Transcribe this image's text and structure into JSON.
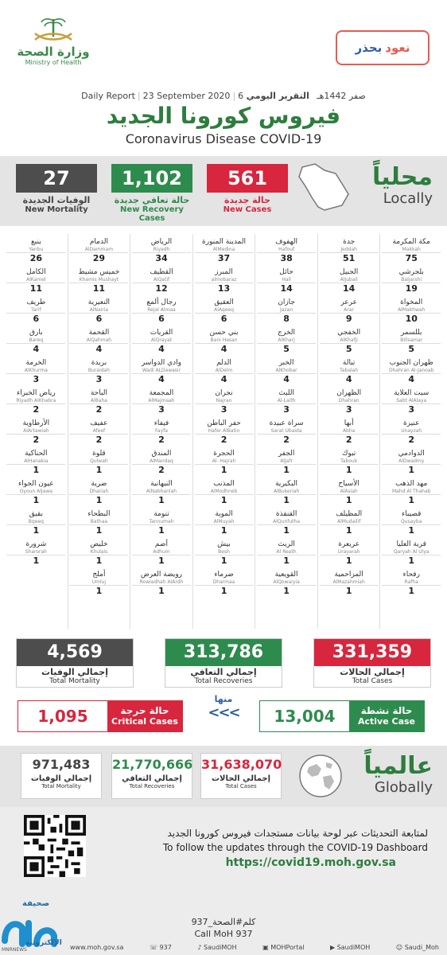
{
  "header": {
    "moh_ar": "وزارة الصحة",
    "moh_en": "Ministry of Health",
    "campaign_a": "نعود",
    "campaign_b": "بحذر",
    "report_ar": "التقرير اليومي",
    "report_hijri": "6 صفر 1442هـ",
    "report_date": "23 September 2020",
    "report_en": "Daily Report",
    "title_ar": "فيروس كورونا الجديد",
    "title_en": "Coronavirus Disease COVID-19"
  },
  "locally": {
    "label_ar": "محلياً",
    "label_en": "Locally",
    "new_cases": {
      "value": "561",
      "ar": "حالة جديدة",
      "en": "New Cases"
    },
    "new_recovery": {
      "value": "1,102",
      "ar": "حالة تعافي جديدة",
      "en": "New Recovery Cases"
    },
    "new_mortality": {
      "value": "27",
      "ar": "الوفيات الجديدة",
      "en": "New Mortality"
    }
  },
  "cities": [
    [
      {
        "ar": "مكة المكرمة",
        "en": "Makkah",
        "v": "75"
      },
      {
        "ar": "بلجرشي",
        "en": "Baljarshi",
        "v": "19"
      },
      {
        "ar": "المخواة",
        "en": "AlMakhwah",
        "v": "10"
      },
      {
        "ar": "بللسمر",
        "en": "Billsamar",
        "v": "5"
      },
      {
        "ar": "ظهران الجنوب",
        "en": "Dhahran Al-Janoab",
        "v": "4"
      },
      {
        "ar": "سبت العلاية",
        "en": "Sabt AlAlaya",
        "v": "3"
      },
      {
        "ar": "عنيزة",
        "en": "Unayzah",
        "v": "2"
      },
      {
        "ar": "الدوادمي",
        "en": "AlDwadmy",
        "v": "1"
      },
      {
        "ar": "مهد الذهب",
        "en": "Mahd Al Thahab",
        "v": "1"
      },
      {
        "ar": "قصيباء",
        "en": "Qusayba",
        "v": "1"
      },
      {
        "ar": "قرية العليا",
        "en": "Qaryah Al Ulya",
        "v": "1"
      },
      {
        "ar": "رفحاء",
        "en": "Rafha",
        "v": "1"
      }
    ],
    [
      {
        "ar": "جدة",
        "en": "Jeddah",
        "v": "51"
      },
      {
        "ar": "الجبيل",
        "en": "AlJubail",
        "v": "14"
      },
      {
        "ar": "عرعر",
        "en": "Arar",
        "v": "9"
      },
      {
        "ar": "الخفجي",
        "en": "AlKhafji",
        "v": "5"
      },
      {
        "ar": "تبالة",
        "en": "Tabalah",
        "v": "4"
      },
      {
        "ar": "الظهران",
        "en": "Dhahran",
        "v": "3"
      },
      {
        "ar": "أبها",
        "en": "Abha",
        "v": "2"
      },
      {
        "ar": "تبوك",
        "en": "Tabouk",
        "v": "1"
      },
      {
        "ar": "الأسياح",
        "en": "AlAsiah",
        "v": "1"
      },
      {
        "ar": "المظيلف",
        "en": "AlMudailif",
        "v": "1"
      },
      {
        "ar": "عريعرة",
        "en": "Urayarah",
        "v": "1"
      },
      {
        "ar": "المزاحمية",
        "en": "AlMazahmiah",
        "v": "1"
      }
    ],
    [
      {
        "ar": "الهفوف",
        "en": "Hafouf",
        "v": "38"
      },
      {
        "ar": "حائل",
        "en": "Hail",
        "v": "14"
      },
      {
        "ar": "جازان",
        "en": "Jazan",
        "v": "8"
      },
      {
        "ar": "الخرج",
        "en": "AlKharj",
        "v": "5"
      },
      {
        "ar": "الخبر",
        "en": "AlKhobar",
        "v": "4"
      },
      {
        "ar": "الليث",
        "en": "Al-Laith",
        "v": "3"
      },
      {
        "ar": "سراة عبيدة",
        "en": "Sarat Ubaida",
        "v": "2"
      },
      {
        "ar": "الجفر",
        "en": "AlJafr",
        "v": "1"
      },
      {
        "ar": "البكيرية",
        "en": "AlBukeriah",
        "v": "1"
      },
      {
        "ar": "القنفذة",
        "en": "AlQunfutha",
        "v": "1"
      },
      {
        "ar": "الريث",
        "en": "Al Reath",
        "v": "1"
      },
      {
        "ar": "القويعية",
        "en": "AlQowaiyia",
        "v": "1"
      }
    ],
    [
      {
        "ar": "المدينة المنورة",
        "en": "AlMedina",
        "v": "37"
      },
      {
        "ar": "المبرز",
        "en": "almobaraz",
        "v": "13"
      },
      {
        "ar": "العقيق",
        "en": "AlAqeeq",
        "v": "6"
      },
      {
        "ar": "بني حسن",
        "en": "Bani Hasan",
        "v": "4"
      },
      {
        "ar": "الدلم",
        "en": "AlDelm",
        "v": "4"
      },
      {
        "ar": "نجران",
        "en": "Najran",
        "v": "3"
      },
      {
        "ar": "حفر الباطن",
        "en": "Hafer AlBatin",
        "v": "2"
      },
      {
        "ar": "الحجرة",
        "en": "Al- Hajrah",
        "v": "1"
      },
      {
        "ar": "المذنب",
        "en": "AlModhneb",
        "v": "1"
      },
      {
        "ar": "الموية",
        "en": "AlMuyah",
        "v": "1"
      },
      {
        "ar": "بيش",
        "en": "Besh",
        "v": "1"
      },
      {
        "ar": "ضرماء",
        "en": "Dharmaa",
        "v": "1"
      }
    ],
    [
      {
        "ar": "الرياض",
        "en": "Riyadh",
        "v": "34"
      },
      {
        "ar": "القطيف",
        "en": "AlQatif",
        "v": "12"
      },
      {
        "ar": "رجال ألمع",
        "en": "Rejal Almaa",
        "v": "6"
      },
      {
        "ar": "القريات",
        "en": "AlQrayat",
        "v": "4"
      },
      {
        "ar": "وادي الدواسر",
        "en": "Wadi ALDawasir",
        "v": "4"
      },
      {
        "ar": "المجمعة",
        "en": "AlMajmaah",
        "v": "3"
      },
      {
        "ar": "فيفاء",
        "en": "Fayfa",
        "v": "2"
      },
      {
        "ar": "المندق",
        "en": "AlMandaq",
        "v": "2"
      },
      {
        "ar": "النبهانية",
        "en": "AlNabhanlah",
        "v": "1"
      },
      {
        "ar": "تنومة",
        "en": "Tannumah",
        "v": "1"
      },
      {
        "ar": "أضم",
        "en": "Adhum",
        "v": "1"
      },
      {
        "ar": "رويضة العرض",
        "en": "Rowiadhah AlArdh",
        "v": "1"
      }
    ],
    [
      {
        "ar": "الدمام",
        "en": "AlDammam",
        "v": "29"
      },
      {
        "ar": "خميس مشيط",
        "en": "Khamis Mushayt",
        "v": "11"
      },
      {
        "ar": "النعيرية",
        "en": "AlNairia",
        "v": "6"
      },
      {
        "ar": "القحمة",
        "en": "AlQahmah",
        "v": "4"
      },
      {
        "ar": "بريدة",
        "en": "Buraidah",
        "v": "3"
      },
      {
        "ar": "الباحة",
        "en": "AlBaha",
        "v": "2"
      },
      {
        "ar": "عفيف",
        "en": "Afeef",
        "v": "2"
      },
      {
        "ar": "قلوة",
        "en": "Qulwah",
        "v": "1"
      },
      {
        "ar": "ضرية",
        "en": "Dhariah",
        "v": "1"
      },
      {
        "ar": "البطحاء",
        "en": "Bathaa",
        "v": "1"
      },
      {
        "ar": "خليص",
        "en": "Khulais",
        "v": "1"
      },
      {
        "ar": "أملج",
        "en": "Umluj",
        "v": "1"
      }
    ],
    [
      {
        "ar": "ينبع",
        "en": "Yanbu",
        "v": "26"
      },
      {
        "ar": "الكامل",
        "en": "AlKamel",
        "v": "11"
      },
      {
        "ar": "طريف",
        "en": "Tarif",
        "v": "6"
      },
      {
        "ar": "بارق",
        "en": "Bareq",
        "v": "4"
      },
      {
        "ar": "الخرمة",
        "en": "AlKhurma",
        "v": "3"
      },
      {
        "ar": "رياض الخبراء",
        "en": "Riyadh AlKhabra",
        "v": "2"
      },
      {
        "ar": "الأرطاوية",
        "en": "AlArtawiah",
        "v": "2"
      },
      {
        "ar": "الحناكية",
        "en": "AlHanakia",
        "v": "1"
      },
      {
        "ar": "عيون الجواء",
        "en": "Oyoun AlJawa",
        "v": "1"
      },
      {
        "ar": "بقيق",
        "en": "Bqeeq",
        "v": "1"
      },
      {
        "ar": "شرورة",
        "en": "Sharorah",
        "v": "1"
      }
    ]
  ],
  "totals": {
    "cases": {
      "value": "331,359",
      "ar": "إجمالي الحالات",
      "en": "Total Cases"
    },
    "recoveries": {
      "value": "313,786",
      "ar": "إجمالي التعافي",
      "en": "Total Recoveries"
    },
    "mortality": {
      "value": "4,569",
      "ar": "إجمالي الوفيات",
      "en": "Total Mortality"
    }
  },
  "active": {
    "active_ar": "حالة نشطة",
    "active_en": "Active Case",
    "active_value": "13,004",
    "of_them_ar": "منها",
    "arrows": "<<<",
    "critical_ar": "حالة حرجة",
    "critical_en": "Critical Cases",
    "critical_value": "1,095"
  },
  "globally": {
    "label_ar": "عالمياً",
    "label_en": "Globally",
    "cases": {
      "value": "31,638,070",
      "ar": "إجمالي الحالات",
      "en": "Total Cases"
    },
    "recoveries": {
      "value": "21,770,666",
      "ar": "إجمالي التعافي",
      "en": "Total Recoveries"
    },
    "mortality": {
      "value": "971,483",
      "ar": "إجمالي الوفيات",
      "en": "Total Mortality"
    }
  },
  "follow": {
    "ar": "لمتابعة التحديثات عبر لوحة بيانات مستجدات فيروس كورونا الجديد",
    "en": "To follow the updates through the COVID-19 Dashboard",
    "url": "https://covid19.moh.gov.sa",
    "call_ar": "كلم#الصحة_937",
    "call_en": "Call MoH 937"
  },
  "footer": {
    "site": "www.moh.gov.sa",
    "phone": "937",
    "twitter": "SaudiMOH",
    "portal": "MOHPortal",
    "youtube": "SaudiMOH",
    "snap": "Saudi_Moh"
  },
  "watermark": {
    "ar_top": "صحيفة",
    "ar_bottom": "الإلكترونية",
    "small": "MNRNEWS"
  },
  "colors": {
    "red": "#d7263d",
    "green": "#2e8b4e",
    "gray": "#4d4d4d",
    "blue": "#2e5fa3",
    "title_green": "#2e7d3e"
  }
}
